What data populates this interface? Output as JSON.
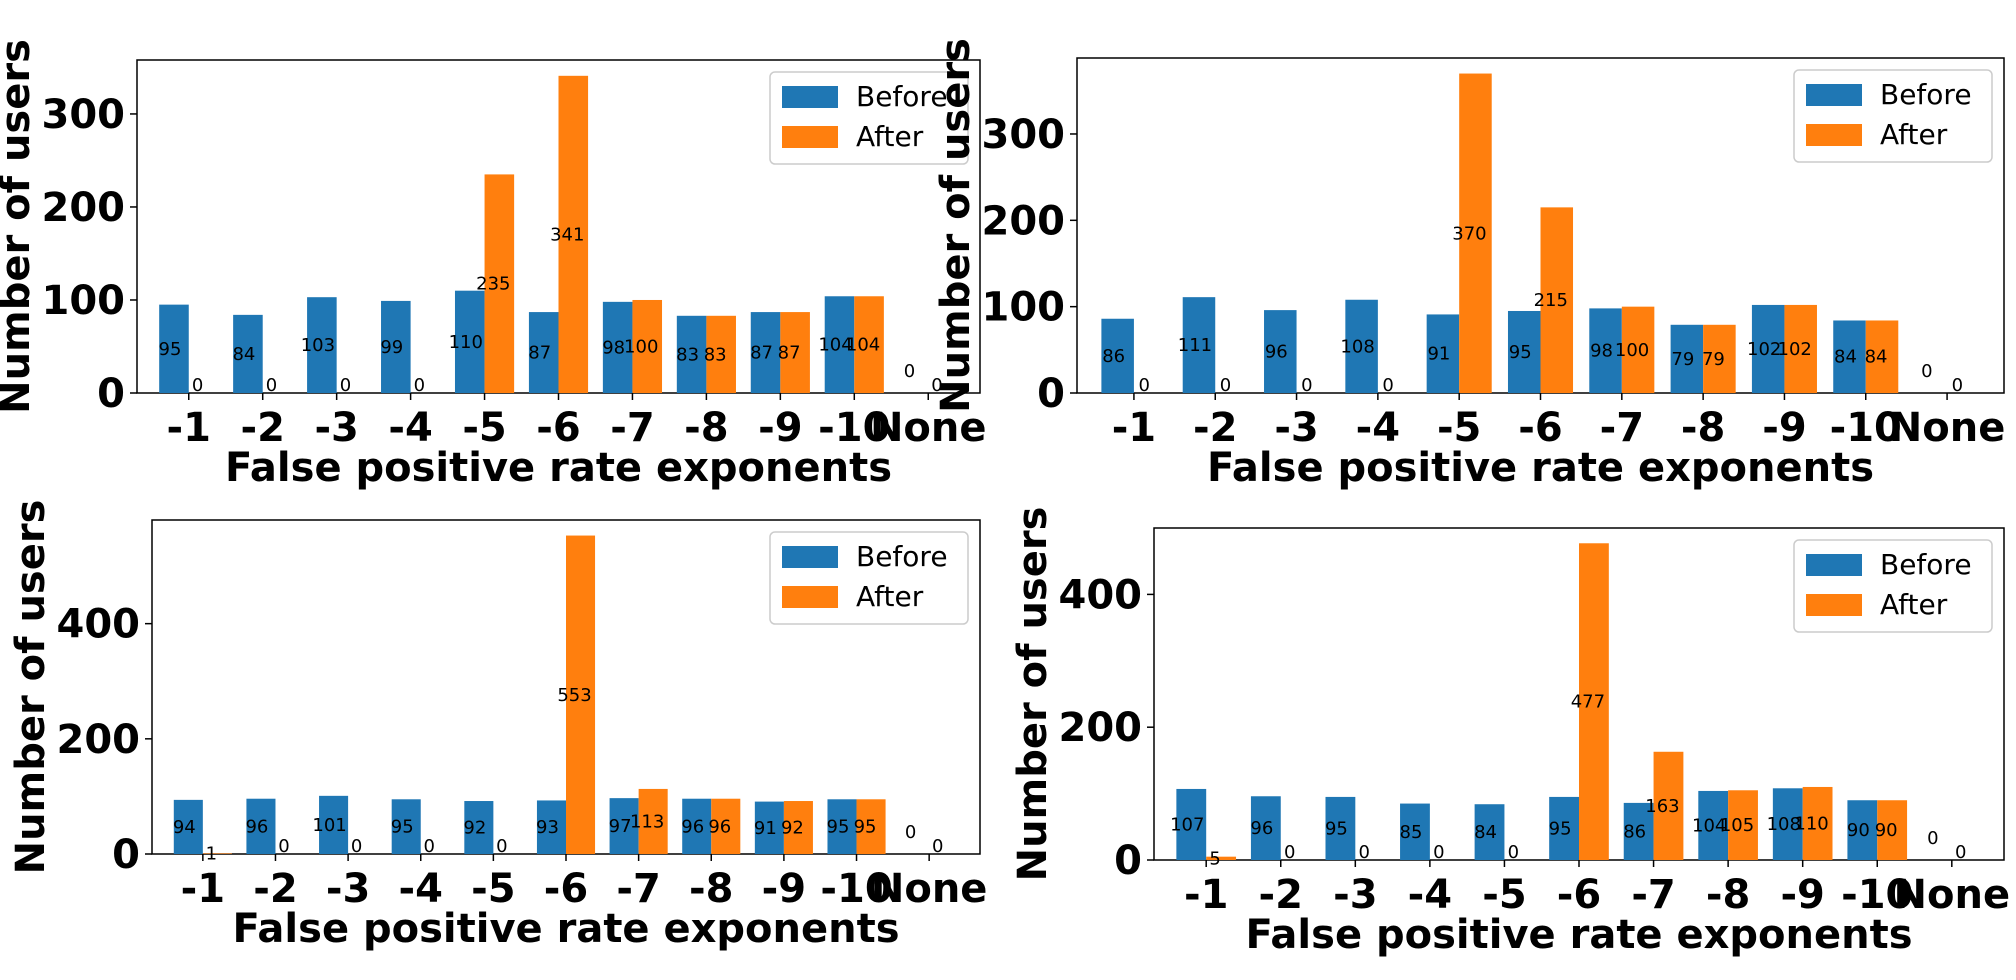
{
  "colors": {
    "before": "#1f77b4",
    "after": "#ff7f0e"
  },
  "chart_data": [
    {
      "type": "bar",
      "categories": [
        "-1",
        "-2",
        "-3",
        "-4",
        "-5",
        "-6",
        "-7",
        "-8",
        "-9",
        "-10",
        "None"
      ],
      "xlabel": "False positive rate exponents",
      "ylabel": "Number of users",
      "ylim": [
        0,
        358
      ],
      "yticks": [
        0,
        100,
        200,
        300
      ],
      "legend": "top-right",
      "series": [
        {
          "name": "Before",
          "values": [
            95,
            84,
            103,
            99,
            110,
            87,
            98,
            83,
            87,
            104,
            0
          ]
        },
        {
          "name": "After",
          "values": [
            0,
            0,
            0,
            0,
            235,
            341,
            100,
            83,
            87,
            104,
            0
          ]
        }
      ]
    },
    {
      "type": "bar",
      "categories": [
        "-1",
        "-2",
        "-3",
        "-4",
        "-5",
        "-6",
        "-7",
        "-8",
        "-9",
        "-10",
        "None"
      ],
      "xlabel": "False positive rate exponents",
      "ylabel": "Number of users",
      "ylim": [
        0,
        388
      ],
      "yticks": [
        0,
        100,
        200,
        300
      ],
      "legend": "top-right",
      "series": [
        {
          "name": "Before",
          "values": [
            86,
            111,
            96,
            108,
            91,
            95,
            98,
            79,
            102,
            84,
            0
          ]
        },
        {
          "name": "After",
          "values": [
            0,
            0,
            0,
            0,
            370,
            215,
            100,
            79,
            102,
            84,
            0
          ]
        }
      ]
    },
    {
      "type": "bar",
      "categories": [
        "-1",
        "-2",
        "-3",
        "-4",
        "-5",
        "-6",
        "-7",
        "-8",
        "-9",
        "-10",
        "None"
      ],
      "xlabel": "False positive rate exponents",
      "ylabel": "Number of users",
      "ylim": [
        0,
        580
      ],
      "yticks": [
        0,
        200,
        400
      ],
      "legend": "top-right",
      "series": [
        {
          "name": "Before",
          "values": [
            94,
            96,
            101,
            95,
            92,
            93,
            97,
            96,
            91,
            95,
            0
          ]
        },
        {
          "name": "After",
          "values": [
            1,
            0,
            0,
            0,
            0,
            553,
            113,
            96,
            92,
            95,
            0
          ]
        }
      ]
    },
    {
      "type": "bar",
      "categories": [
        "-1",
        "-2",
        "-3",
        "-4",
        "-5",
        "-6",
        "-7",
        "-8",
        "-9",
        "-10",
        "None"
      ],
      "xlabel": "False positive rate exponents",
      "ylabel": "Number of users",
      "ylim": [
        0,
        500
      ],
      "yticks": [
        0,
        200,
        400
      ],
      "legend": "top-right",
      "series": [
        {
          "name": "Before",
          "values": [
            107,
            96,
            95,
            85,
            84,
            95,
            86,
            104,
            108,
            90,
            0
          ]
        },
        {
          "name": "After",
          "values": [
            5,
            0,
            0,
            0,
            0,
            477,
            163,
            105,
            110,
            90,
            0
          ]
        }
      ]
    }
  ]
}
